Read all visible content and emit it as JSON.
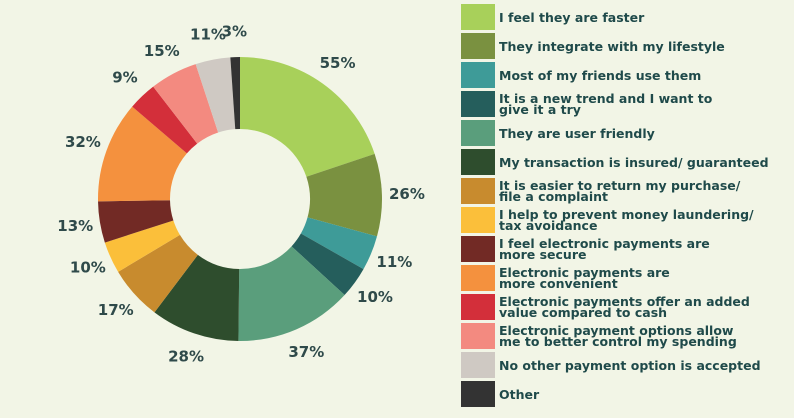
{
  "chart_data": {
    "type": "donut",
    "categories": [
      "I feel they are faster",
      "They integrate with my lifestyle",
      "Most of my friends use them",
      "It is a new trend and I want to\ngive it a try",
      "They are user friendly",
      "My transaction is insured/ guaranteed",
      "It is easier to return my purchase/\nfile a complaint",
      "I help to prevent money laundering/\ntax avoidance",
      "I feel electronic payments are\nmore secure",
      "Electronic payments are\nmore convenient",
      "Electronic payments offer an added\nvalue compared to cash",
      "Electronic payment  options  allow\nme to better control my spending",
      "No other payment  option   is accepted",
      "Other"
    ],
    "values": [
      55,
      26,
      11,
      10,
      37,
      28,
      17,
      10,
      13,
      32,
      9,
      15,
      11,
      3
    ],
    "value_labels": [
      "55%",
      "26%",
      "11%",
      "10%",
      "37%",
      "28%",
      "17%",
      "10%",
      "13%",
      "32%",
      "9%",
      "15%",
      "11%",
      "3%"
    ],
    "colors": [
      "#a8d05a",
      "#7a9140",
      "#3e9b98",
      "#255e5c",
      "#5a9e7c",
      "#2e4d2d",
      "#c88b2e",
      "#fbbf3a",
      "#722a25",
      "#f4913e",
      "#d32f3a",
      "#f38a80",
      "#cfc9c3",
      "#333333"
    ]
  }
}
